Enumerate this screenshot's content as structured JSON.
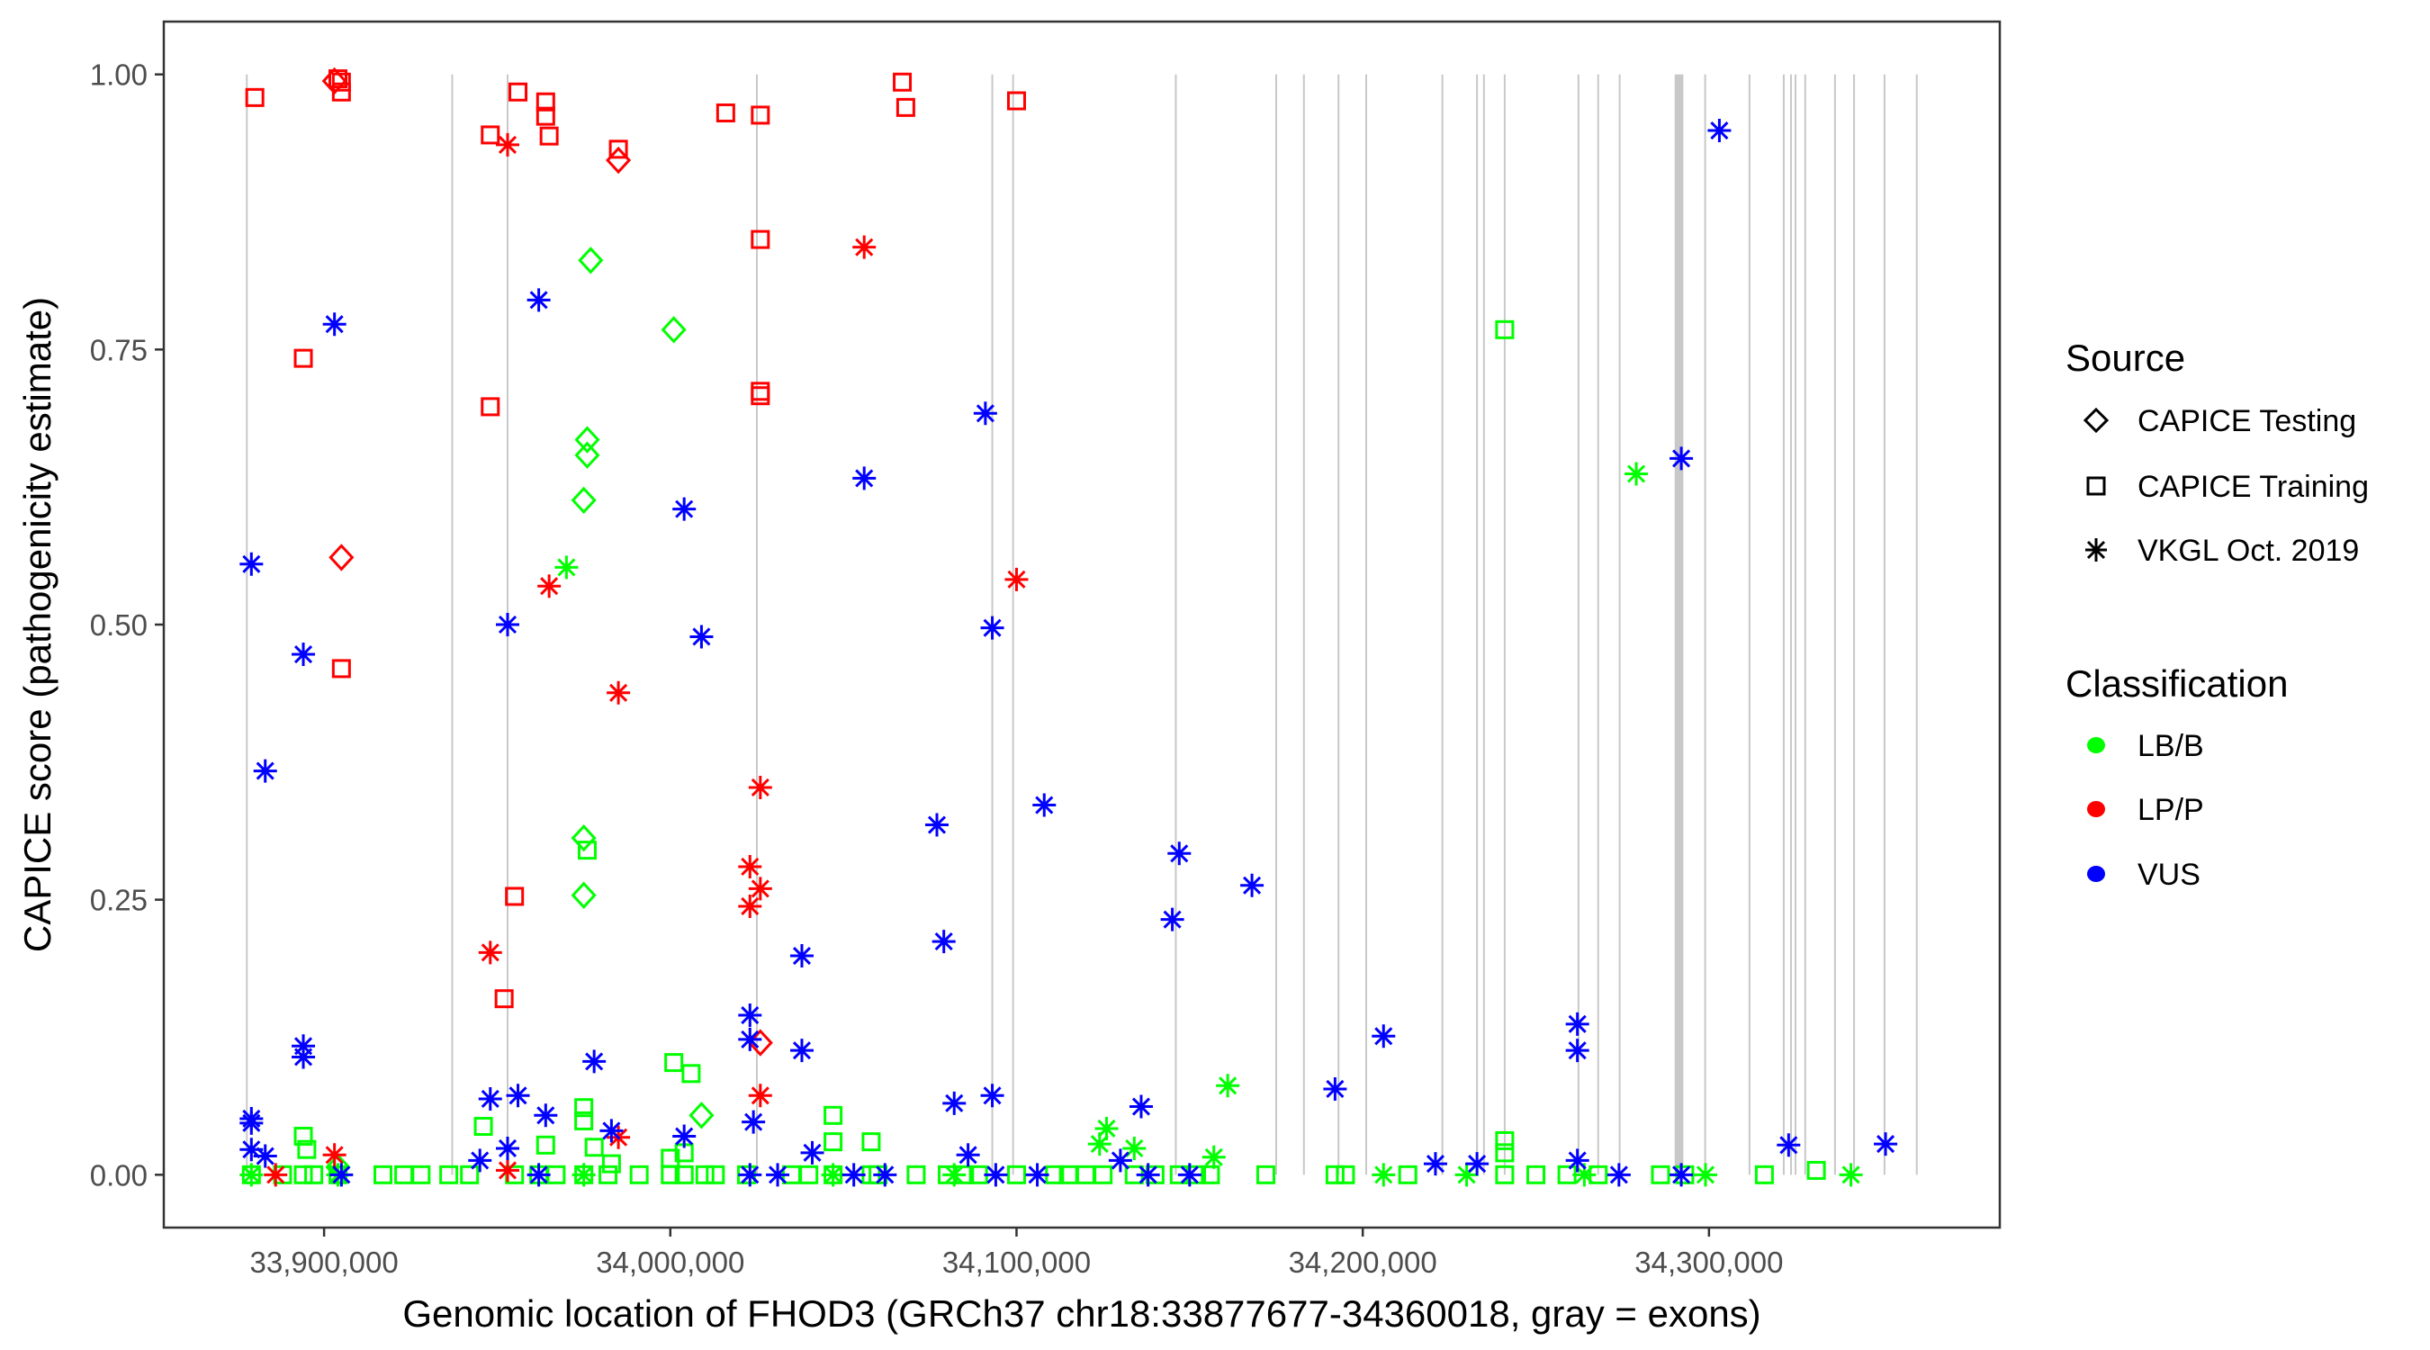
{
  "chart_data": {
    "type": "scatter",
    "title": "",
    "xlabel": "Genomic location of FHOD3 (GRCh37 chr18:33877677-34360018, gray = exons)",
    "ylabel": "CAPICE score (pathogenicity estimate)",
    "xlim": [
      33853700,
      34384000
    ],
    "ylim": [
      -0.048,
      1.048
    ],
    "x_ticks": [
      33900000,
      34000000,
      34100000,
      34200000,
      34300000
    ],
    "x_tick_labels": [
      "33,900,000",
      "34,000,000",
      "34,100,000",
      "34,200,000",
      "34,300,000"
    ],
    "y_ticks": [
      0,
      0.25,
      0.5,
      0.75,
      1.0
    ],
    "y_tick_labels": [
      "0.00",
      "0.25",
      "0.50",
      "0.75",
      "1.00"
    ],
    "grid": false,
    "exon_color": "#c8c8c8",
    "exons": [
      [
        33877677,
        33877677
      ],
      [
        33937000,
        33937000
      ],
      [
        33953000,
        33953000
      ],
      [
        34025000,
        34025000
      ],
      [
        34093000,
        34093000
      ],
      [
        34099000,
        34099000
      ],
      [
        34146000,
        34146000
      ],
      [
        34175000,
        34175000
      ],
      [
        34183000,
        34183000
      ],
      [
        34193000,
        34193000
      ],
      [
        34201000,
        34201000
      ],
      [
        34223000,
        34223000
      ],
      [
        34233000,
        34233000
      ],
      [
        34235000,
        34235000
      ],
      [
        34241000,
        34241000
      ],
      [
        34262300,
        34262300
      ],
      [
        34268000,
        34268000
      ],
      [
        34274200,
        34274200
      ],
      [
        34290100,
        34292600
      ],
      [
        34298900,
        34298900
      ],
      [
        34311700,
        34311700
      ],
      [
        34321600,
        34321600
      ],
      [
        34323700,
        34323700
      ],
      [
        34325000,
        34325000
      ],
      [
        34327800,
        34327800
      ],
      [
        34336400,
        34336400
      ],
      [
        34341900,
        34341900
      ],
      [
        34350700,
        34350700
      ],
      [
        34360018,
        34360018
      ]
    ],
    "legend": {
      "placement": "right",
      "source_title": "Source",
      "source_items": [
        {
          "label": "CAPICE Testing",
          "shape": "diamond"
        },
        {
          "label": "CAPICE Training",
          "shape": "square"
        },
        {
          "label": "VKGL Oct. 2019",
          "shape": "asterisk"
        }
      ],
      "classification_title": "Classification",
      "classification_items": [
        {
          "label": "LB/B",
          "color": "#00ff00"
        },
        {
          "label": "LP/P",
          "color": "#ff0000"
        },
        {
          "label": "VUS",
          "color": "#0000ff"
        }
      ]
    },
    "series": [
      {
        "source": "CAPICE Training",
        "classification": "LB/B",
        "points": [
          [
            34241000,
            0.768
          ],
          [
            33976000,
            0.295
          ],
          [
            34001000,
            0.102
          ],
          [
            34006000,
            0.092
          ],
          [
            33946000,
            0.044
          ],
          [
            33975000,
            0.061
          ],
          [
            33975000,
            0.049
          ],
          [
            34047000,
            0.054
          ],
          [
            33894000,
            0.035
          ],
          [
            33895000,
            0.023
          ],
          [
            34047000,
            0.03
          ],
          [
            34058000,
            0.03
          ],
          [
            33964000,
            0.027
          ],
          [
            34241000,
            0.031
          ],
          [
            34241000,
            0.02
          ],
          [
            34331000,
            0.004
          ],
          [
            34004000,
            0.02
          ],
          [
            34000000,
            0.015
          ],
          [
            33978000,
            0.025
          ],
          [
            33983000,
            0.01
          ],
          [
            33879000,
            0
          ],
          [
            33888000,
            0
          ],
          [
            33894000,
            0
          ],
          [
            33897000,
            0
          ],
          [
            33904000,
            0
          ],
          [
            33917000,
            0
          ],
          [
            33923000,
            0
          ],
          [
            33928000,
            0
          ],
          [
            33936000,
            0
          ],
          [
            33942000,
            0
          ],
          [
            33955000,
            0
          ],
          [
            33962000,
            0
          ],
          [
            33967000,
            0
          ],
          [
            33975000,
            0
          ],
          [
            33982000,
            0
          ],
          [
            33991000,
            0
          ],
          [
            34000000,
            0
          ],
          [
            34004000,
            0
          ],
          [
            34010000,
            0
          ],
          [
            34013000,
            0
          ],
          [
            34022000,
            0
          ],
          [
            34035000,
            0
          ],
          [
            34040000,
            0
          ],
          [
            34047000,
            0
          ],
          [
            34058000,
            0
          ],
          [
            34060000,
            0
          ],
          [
            34071000,
            0
          ],
          [
            34080000,
            0
          ],
          [
            34085000,
            0
          ],
          [
            34089000,
            0
          ],
          [
            34100000,
            0
          ],
          [
            34111000,
            0
          ],
          [
            34115000,
            0
          ],
          [
            34120000,
            0
          ],
          [
            34125000,
            0
          ],
          [
            34134000,
            0
          ],
          [
            34140000,
            0
          ],
          [
            34147000,
            0
          ],
          [
            34152000,
            0
          ],
          [
            34156000,
            0
          ],
          [
            34172000,
            0
          ],
          [
            34192000,
            0
          ],
          [
            34195000,
            0
          ],
          [
            34213000,
            0
          ],
          [
            34241000,
            0
          ],
          [
            34250000,
            0
          ],
          [
            34259000,
            0
          ],
          [
            34268000,
            0
          ],
          [
            34286000,
            0
          ],
          [
            34293000,
            0
          ],
          [
            34316000,
            0
          ]
        ]
      },
      {
        "source": "CAPICE Testing",
        "classification": "LB/B",
        "points": [
          [
            33977000,
            0.831
          ],
          [
            34001000,
            0.768
          ],
          [
            33976000,
            0.668
          ],
          [
            33976000,
            0.654
          ],
          [
            33975000,
            0.613
          ],
          [
            33975000,
            0.306
          ],
          [
            33975000,
            0.254
          ],
          [
            34009000,
            0.054
          ],
          [
            33904000,
            0.007
          ]
        ]
      },
      {
        "source": "VKGL Oct. 2019",
        "classification": "LB/B",
        "points": [
          [
            33970000,
            0.552
          ],
          [
            34279000,
            0.637
          ],
          [
            34161000,
            0.081
          ],
          [
            34126000,
            0.042
          ],
          [
            34124000,
            0.028
          ],
          [
            34134000,
            0.024
          ],
          [
            34157000,
            0.016
          ],
          [
            33879000,
            0
          ],
          [
            33904000,
            0
          ],
          [
            33975000,
            0
          ],
          [
            34047000,
            0
          ],
          [
            34082000,
            0
          ],
          [
            34206000,
            0
          ],
          [
            34230000,
            0
          ],
          [
            34264000,
            0
          ],
          [
            34299000,
            0
          ],
          [
            34341000,
            0
          ]
        ]
      },
      {
        "source": "CAPICE Training",
        "classification": "LP/P",
        "points": [
          [
            33880000,
            0.979
          ],
          [
            33904000,
            0.996
          ],
          [
            33905000,
            0.993
          ],
          [
            33905000,
            0.984
          ],
          [
            33894000,
            0.742
          ],
          [
            33905000,
            0.46
          ],
          [
            33948000,
            0.945
          ],
          [
            33956000,
            0.984
          ],
          [
            33964000,
            0.975
          ],
          [
            33964000,
            0.962
          ],
          [
            33965000,
            0.944
          ],
          [
            33985000,
            0.932
          ],
          [
            34016000,
            0.965
          ],
          [
            34026000,
            0.963
          ],
          [
            34026000,
            0.85
          ],
          [
            34026000,
            0.712
          ],
          [
            34026000,
            0.708
          ],
          [
            34067000,
            0.993
          ],
          [
            34068000,
            0.97
          ],
          [
            34100000,
            0.976
          ],
          [
            33948000,
            0.698
          ],
          [
            33955000,
            0.253
          ],
          [
            33952000,
            0.16
          ]
        ]
      },
      {
        "source": "CAPICE Testing",
        "classification": "LP/P",
        "points": [
          [
            33903000,
            0.994
          ],
          [
            33985000,
            0.922
          ],
          [
            33905000,
            0.561
          ],
          [
            34026000,
            0.12
          ]
        ]
      },
      {
        "source": "VKGL Oct. 2019",
        "classification": "LP/P",
        "points": [
          [
            33953000,
            0.936
          ],
          [
            34056000,
            0.843
          ],
          [
            33965000,
            0.535
          ],
          [
            34100000,
            0.541
          ],
          [
            33985000,
            0.438
          ],
          [
            34026000,
            0.352
          ],
          [
            34023000,
            0.28
          ],
          [
            34026000,
            0.26
          ],
          [
            34023000,
            0.244
          ],
          [
            33948000,
            0.202
          ],
          [
            34026000,
            0.072
          ],
          [
            33985000,
            0.034
          ],
          [
            33903000,
            0.018
          ],
          [
            33886000,
            0
          ],
          [
            33953000,
            0.004
          ]
        ]
      },
      {
        "source": "VKGL Oct. 2019",
        "classification": "VUS",
        "points": [
          [
            34303000,
            0.949
          ],
          [
            33962000,
            0.795
          ],
          [
            33903000,
            0.773
          ],
          [
            34091000,
            0.692
          ],
          [
            34292000,
            0.651
          ],
          [
            34056000,
            0.633
          ],
          [
            34004000,
            0.605
          ],
          [
            33879000,
            0.555
          ],
          [
            33953000,
            0.5
          ],
          [
            34093000,
            0.497
          ],
          [
            34009000,
            0.489
          ],
          [
            33894000,
            0.473
          ],
          [
            33883000,
            0.367
          ],
          [
            34108000,
            0.336
          ],
          [
            34077000,
            0.318
          ],
          [
            34147000,
            0.292
          ],
          [
            34168000,
            0.263
          ],
          [
            34079000,
            0.212
          ],
          [
            34145000,
            0.232
          ],
          [
            34038000,
            0.199
          ],
          [
            33894000,
            0.117
          ],
          [
            33894000,
            0.107
          ],
          [
            34023000,
            0.145
          ],
          [
            34023000,
            0.123
          ],
          [
            34206000,
            0.126
          ],
          [
            34262000,
            0.137
          ],
          [
            34262000,
            0.113
          ],
          [
            34038000,
            0.113
          ],
          [
            33978000,
            0.103
          ],
          [
            34192000,
            0.078
          ],
          [
            33948000,
            0.069
          ],
          [
            33956000,
            0.072
          ],
          [
            34093000,
            0.072
          ],
          [
            34082000,
            0.065
          ],
          [
            34136000,
            0.062
          ],
          [
            33964000,
            0.054
          ],
          [
            33879000,
            0.051
          ],
          [
            33879000,
            0.047
          ],
          [
            34024000,
            0.048
          ],
          [
            34323000,
            0.027
          ],
          [
            34351000,
            0.028
          ],
          [
            33983000,
            0.04
          ],
          [
            34004000,
            0.035
          ],
          [
            33879000,
            0.023
          ],
          [
            33883000,
            0.017
          ],
          [
            33953000,
            0.024
          ],
          [
            34041000,
            0.02
          ],
          [
            34086000,
            0.018
          ],
          [
            33945000,
            0.013
          ],
          [
            34221000,
            0.01
          ],
          [
            34233000,
            0.01
          ],
          [
            34262000,
            0.013
          ],
          [
            34130000,
            0.013
          ],
          [
            33905000,
            0
          ],
          [
            33962000,
            0
          ],
          [
            34023000,
            0
          ],
          [
            34031000,
            0
          ],
          [
            34053000,
            0
          ],
          [
            34062000,
            0
          ],
          [
            34094000,
            0
          ],
          [
            34106000,
            0
          ],
          [
            34138000,
            0
          ],
          [
            34150000,
            0
          ],
          [
            34274000,
            0
          ],
          [
            34292000,
            0
          ]
        ]
      }
    ]
  }
}
